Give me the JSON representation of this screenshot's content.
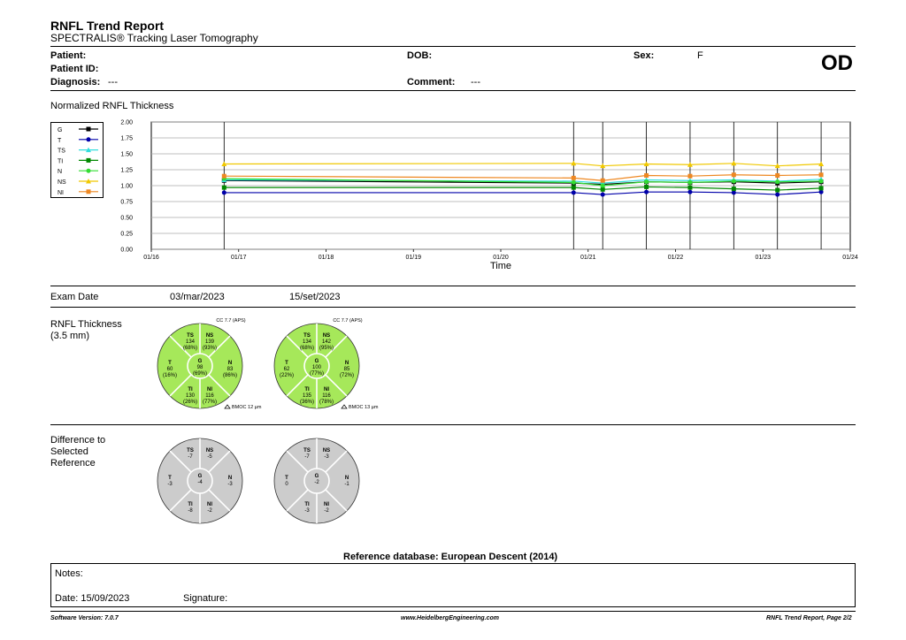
{
  "header": {
    "title": "RNFL Trend Report",
    "subtitle": "SPECTRALIS® Tracking Laser Tomography"
  },
  "patient": {
    "patient_label": "Patient:",
    "patient_id_label": "Patient ID:",
    "diagnosis_label": "Diagnosis:",
    "diagnosis_value": "---",
    "dob_label": "DOB:",
    "comment_label": "Comment:",
    "comment_value": "---",
    "sex_label": "Sex:",
    "sex_value": "F",
    "eye": "OD"
  },
  "chart_title": "Normalized RNFL Thickness",
  "chart_data": {
    "type": "line",
    "xlabel": "Time",
    "ylabel": "",
    "ylim": [
      0,
      2
    ],
    "yticks": [
      "0.00",
      "0.25",
      "0.50",
      "0.75",
      "1.00",
      "1.25",
      "1.50",
      "1.75",
      "2.00"
    ],
    "xticks": [
      "01/16",
      "01/17",
      "01/18",
      "01/19",
      "01/20",
      "01/21",
      "01/22",
      "01/23",
      "01/24"
    ],
    "x": [
      "2016-11",
      "2020-11",
      "2021-03",
      "2021-09",
      "2022-03",
      "2022-09",
      "2023-03",
      "2023-09"
    ],
    "grid": true,
    "legend": "left",
    "series": [
      {
        "name": "G",
        "color": "#000000",
        "marker": "square",
        "values": [
          1.08,
          1.04,
          1.02,
          1.06,
          1.05,
          1.06,
          1.04,
          1.06
        ]
      },
      {
        "name": "T",
        "color": "#0000aa",
        "marker": "circle",
        "values": [
          0.89,
          0.89,
          0.86,
          0.9,
          0.9,
          0.89,
          0.86,
          0.9
        ]
      },
      {
        "name": "TS",
        "color": "#33dddd",
        "marker": "triangle",
        "values": [
          1.09,
          1.07,
          1.04,
          1.09,
          1.08,
          1.09,
          1.07,
          1.1
        ]
      },
      {
        "name": "TI",
        "color": "#008800",
        "marker": "square",
        "values": [
          0.97,
          0.97,
          0.94,
          0.98,
          0.97,
          0.95,
          0.93,
          0.96
        ]
      },
      {
        "name": "N",
        "color": "#33dd33",
        "marker": "circle",
        "values": [
          1.11,
          1.05,
          1.0,
          1.06,
          1.05,
          1.07,
          1.06,
          1.07
        ]
      },
      {
        "name": "NS",
        "color": "#f0c800",
        "marker": "triangle",
        "values": [
          1.34,
          1.35,
          1.31,
          1.34,
          1.33,
          1.35,
          1.31,
          1.34
        ]
      },
      {
        "name": "NI",
        "color": "#ee8822",
        "marker": "square",
        "values": [
          1.15,
          1.12,
          1.08,
          1.16,
          1.15,
          1.17,
          1.16,
          1.17
        ]
      }
    ]
  },
  "exams": {
    "exam_date_label": "Exam Date",
    "dates": [
      "03/mar/2023",
      "15/set/2023"
    ]
  },
  "rnfl": {
    "label_line1": "RNFL Thickness",
    "label_line2": "(3.5 mm)",
    "fill_color": "#a6e85a",
    "circles": [
      {
        "cc": "CC 7.7 (APS)",
        "bmo": "BMOC 12 µm",
        "ts": {
          "name": "TS",
          "value": "134",
          "pct": "(68%)"
        },
        "ns": {
          "name": "NS",
          "value": "139",
          "pct": "(93%)"
        },
        "t": {
          "name": "T",
          "value": "60",
          "pct": "(16%)"
        },
        "g": {
          "name": "G",
          "value": "98",
          "pct": "(69%)"
        },
        "n": {
          "name": "N",
          "value": "83",
          "pct": "(86%)"
        },
        "ti": {
          "name": "TI",
          "value": "130",
          "pct": "(26%)"
        },
        "ni": {
          "name": "NI",
          "value": "116",
          "pct": "(77%)"
        }
      },
      {
        "cc": "CC 7.7 (APS)",
        "bmo": "BMOC 13 µm",
        "ts": {
          "name": "TS",
          "value": "134",
          "pct": "(68%)"
        },
        "ns": {
          "name": "NS",
          "value": "142",
          "pct": "(95%)"
        },
        "t": {
          "name": "T",
          "value": "62",
          "pct": "(22%)"
        },
        "g": {
          "name": "G",
          "value": "100",
          "pct": "(77%)"
        },
        "n": {
          "name": "N",
          "value": "85",
          "pct": "(72%)"
        },
        "ti": {
          "name": "TI",
          "value": "135",
          "pct": "(36%)"
        },
        "ni": {
          "name": "NI",
          "value": "116",
          "pct": "(78%)"
        }
      }
    ]
  },
  "difference": {
    "label_line1": "Difference to",
    "label_line2": "Selected",
    "label_line3": "Reference",
    "fill_color": "#cccccc",
    "circles": [
      {
        "ts": {
          "name": "TS",
          "value": "-7"
        },
        "ns": {
          "name": "NS",
          "value": "-5"
        },
        "t": {
          "name": "T",
          "value": "-3"
        },
        "g": {
          "name": "G",
          "value": "-4"
        },
        "n": {
          "name": "N",
          "value": "-3"
        },
        "ti": {
          "name": "TI",
          "value": "-8"
        },
        "ni": {
          "name": "NI",
          "value": "-2"
        }
      },
      {
        "ts": {
          "name": "TS",
          "value": "-7"
        },
        "ns": {
          "name": "NS",
          "value": "-3"
        },
        "t": {
          "name": "T",
          "value": "0"
        },
        "g": {
          "name": "G",
          "value": "-2"
        },
        "n": {
          "name": "N",
          "value": "-1"
        },
        "ti": {
          "name": "TI",
          "value": "-3"
        },
        "ni": {
          "name": "NI",
          "value": "-2"
        }
      }
    ]
  },
  "reference_db": "Reference database: European Descent (2014)",
  "notes": {
    "notes_label": "Notes:",
    "date_label": "Date: 15/09/2023",
    "signature_label": "Signature:"
  },
  "footer": {
    "software": "Software Version: 7.0.7",
    "website": "www.HeidelbergEngineering.com",
    "page": "RNFL Trend Report, Page 2/2"
  }
}
